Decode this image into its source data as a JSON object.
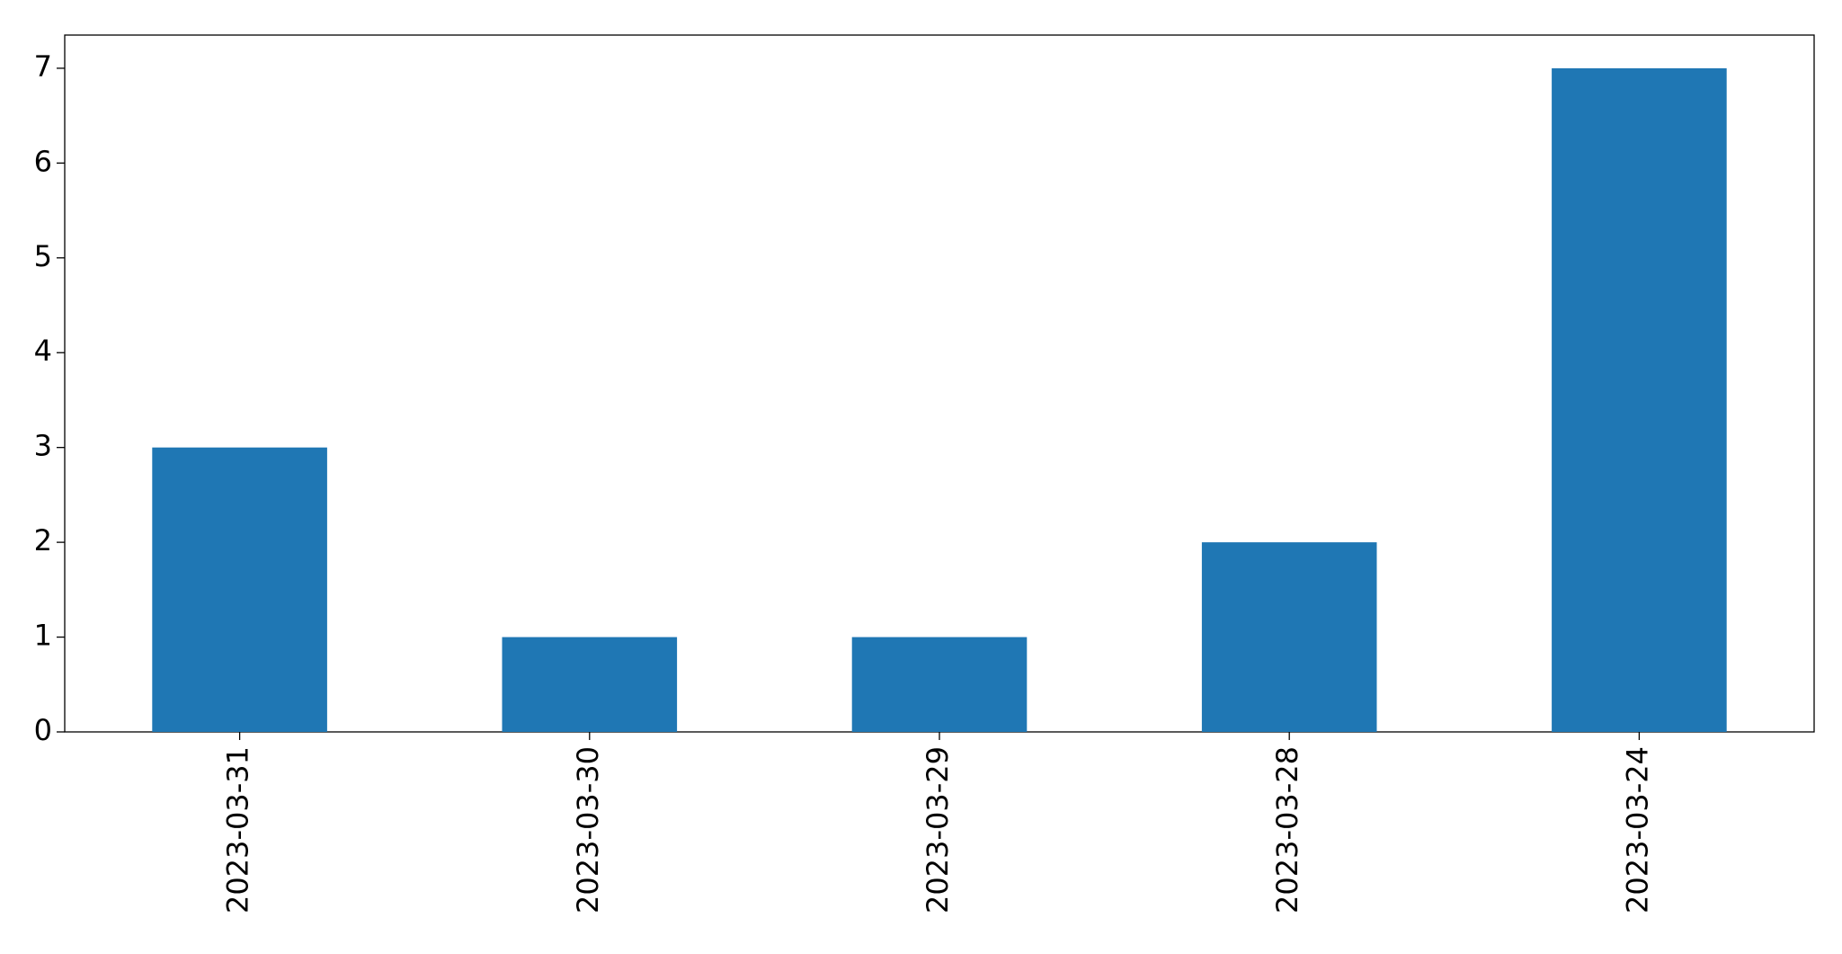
{
  "chart_data": {
    "type": "bar",
    "categories": [
      "2023-03-31",
      "2023-03-30",
      "2023-03-29",
      "2023-03-28",
      "2023-03-24"
    ],
    "values": [
      3,
      1,
      1,
      2,
      7
    ],
    "color": "#1f77b4",
    "ylim": [
      0,
      7.35
    ],
    "yticks": [
      0,
      1,
      2,
      3,
      4,
      5,
      6,
      7
    ],
    "grid": false
  }
}
